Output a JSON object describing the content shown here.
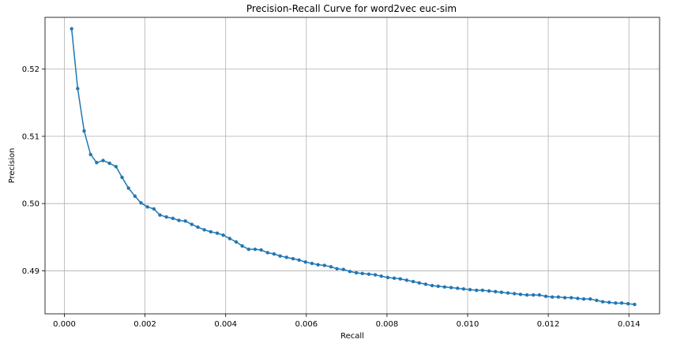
{
  "chart_data": {
    "type": "line",
    "title": "Precision-Recall Curve for word2vec euc-sim",
    "xlabel": "Recall",
    "ylabel": "Precision",
    "xlim": [
      -0.00048,
      0.01476
    ],
    "ylim": [
      0.4836,
      0.5277
    ],
    "xticks": [
      0.0,
      0.002,
      0.004,
      0.006,
      0.008,
      0.01,
      0.012,
      0.014
    ],
    "xtick_labels": [
      "0.000",
      "0.002",
      "0.004",
      "0.006",
      "0.008",
      "0.010",
      "0.012",
      "0.014"
    ],
    "yticks": [
      0.49,
      0.5,
      0.51,
      0.52
    ],
    "ytick_labels": [
      "0.49",
      "0.50",
      "0.51",
      "0.52"
    ],
    "grid": true,
    "series": [
      {
        "color": "#1f77b4",
        "marker": "dot",
        "x": [
          0.00018,
          0.00033,
          0.00049,
          0.00065,
          0.0008,
          0.00096,
          0.00112,
          0.00128,
          0.00143,
          0.00159,
          0.00175,
          0.0019,
          0.00206,
          0.00222,
          0.00237,
          0.00253,
          0.00269,
          0.00284,
          0.003,
          0.00316,
          0.00331,
          0.00347,
          0.00363,
          0.00379,
          0.00394,
          0.0041,
          0.00426,
          0.00441,
          0.00457,
          0.00473,
          0.00488,
          0.00504,
          0.0052,
          0.00535,
          0.00551,
          0.00567,
          0.00582,
          0.00598,
          0.00614,
          0.00629,
          0.00645,
          0.00661,
          0.00676,
          0.00692,
          0.00708,
          0.00724,
          0.00739,
          0.00755,
          0.00771,
          0.00786,
          0.00802,
          0.00818,
          0.00833,
          0.00849,
          0.00865,
          0.0088,
          0.00896,
          0.00912,
          0.00927,
          0.00943,
          0.00959,
          0.00975,
          0.0099,
          0.01006,
          0.01022,
          0.01037,
          0.01053,
          0.01069,
          0.01084,
          0.011,
          0.01116,
          0.01131,
          0.01147,
          0.01163,
          0.01178,
          0.01194,
          0.0121,
          0.01225,
          0.01241,
          0.01257,
          0.01273,
          0.01288,
          0.01304,
          0.0132,
          0.01335,
          0.01351,
          0.01367,
          0.01382,
          0.01398,
          0.01414
        ],
        "y": [
          0.526,
          0.5171,
          0.5108,
          0.5073,
          0.5061,
          0.5064,
          0.506,
          0.5055,
          0.5039,
          0.5023,
          0.5011,
          0.5001,
          0.4995,
          0.4992,
          0.4983,
          0.498,
          0.4978,
          0.4975,
          0.4974,
          0.4969,
          0.4965,
          0.4961,
          0.4958,
          0.4956,
          0.4953,
          0.4948,
          0.4943,
          0.4937,
          0.4932,
          0.4932,
          0.4931,
          0.4927,
          0.4925,
          0.4922,
          0.492,
          0.4918,
          0.4916,
          0.4913,
          0.4911,
          0.4909,
          0.4908,
          0.4906,
          0.4903,
          0.4902,
          0.4899,
          0.4897,
          0.4896,
          0.4895,
          0.4894,
          0.4892,
          0.489,
          0.4889,
          0.4888,
          0.4886,
          0.4884,
          0.4882,
          0.488,
          0.4878,
          0.4877,
          0.4876,
          0.4875,
          0.4874,
          0.4873,
          0.4872,
          0.4871,
          0.4871,
          0.487,
          0.4869,
          0.4868,
          0.4867,
          0.4866,
          0.4865,
          0.4864,
          0.4864,
          0.4864,
          0.4862,
          0.4861,
          0.4861,
          0.486,
          0.486,
          0.4859,
          0.4858,
          0.4858,
          0.4856,
          0.4854,
          0.4853,
          0.4852,
          0.4852,
          0.4851,
          0.485
        ]
      }
    ]
  }
}
